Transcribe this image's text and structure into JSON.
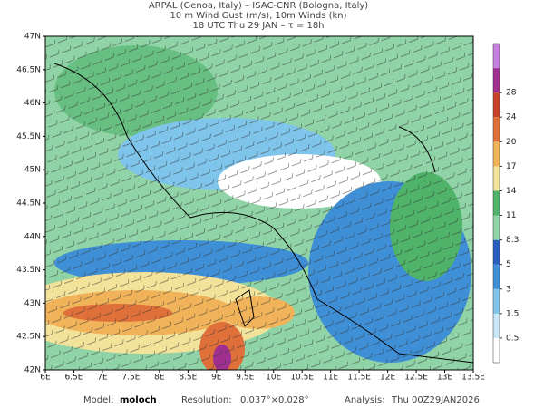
{
  "header": {
    "lines": [
      "ARPAL (Genoa, Italy)  –  ISAC-CNR (Bologna, Italy)",
      "10 m Wind Gust (m/s), 10m Winds (kn)",
      "18 UTC Thu 29 JAN  –  τ = 18h"
    ]
  },
  "map": {
    "lat_labels": [
      "47N",
      "46.5N",
      "46N",
      "45.5N",
      "45N",
      "44.5N",
      "44N",
      "43.5N",
      "43N",
      "42.5N",
      "42N"
    ],
    "lon_labels": [
      "6E",
      "6.5E",
      "7E",
      "7.5E",
      "8E",
      "8.5E",
      "9E",
      "9.5E",
      "10E",
      "10.5E",
      "11E",
      "11.5E",
      "12E",
      "12.5E",
      "13E",
      "13.5E"
    ]
  },
  "colorbar": {
    "labels": [
      "0.5",
      "1.5",
      "3",
      "5",
      "8.3",
      "11",
      "14",
      "17",
      "20",
      "24",
      "28"
    ],
    "colors": [
      "#ffffff",
      "#c8e6f5",
      "#7fc4ea",
      "#3f8fd6",
      "#2a5fc0",
      "#8fd3a6",
      "#4fb36a",
      "#f3e39a",
      "#f0b35a",
      "#e0703a",
      "#c8402a",
      "#a03090",
      "#c880e0"
    ]
  },
  "footer": {
    "model_label": "Model:",
    "model": "moloch",
    "resolution_label": "Resolution:",
    "resolution": "0.037°×0.028°",
    "analysis_label": "Analysis:",
    "analysis": "Thu 00Z29JAN2026"
  }
}
